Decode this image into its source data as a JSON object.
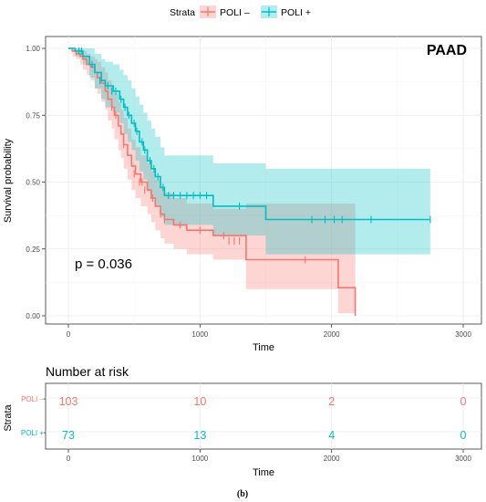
{
  "chart_data": [
    {
      "type": "line",
      "subtype": "kaplan-meier",
      "label": "PAAD",
      "annotation": "p = 0.036",
      "xlabel": "Time",
      "ylabel": "Survival probability",
      "xlim": [
        0,
        3000
      ],
      "ylim": [
        0,
        1
      ],
      "xticks": [
        0,
        1000,
        2000,
        3000
      ],
      "yticks": [
        "0.00",
        "0.25",
        "0.50",
        "0.75",
        "1.00"
      ],
      "grid": true,
      "legend": {
        "title": "Strata",
        "position": "top",
        "entries": [
          "POLI –",
          "POLI +"
        ]
      },
      "series": [
        {
          "name": "POLI –",
          "color": "#F8766D",
          "fill": "#F8766D",
          "steps": [
            [
              0,
              1.0
            ],
            [
              30,
              0.99
            ],
            [
              60,
              0.98
            ],
            [
              90,
              0.97
            ],
            [
              110,
              0.96
            ],
            [
              140,
              0.94
            ],
            [
              170,
              0.93
            ],
            [
              200,
              0.91
            ],
            [
              220,
              0.89
            ],
            [
              250,
              0.87
            ],
            [
              280,
              0.84
            ],
            [
              300,
              0.81
            ],
            [
              330,
              0.78
            ],
            [
              350,
              0.75
            ],
            [
              380,
              0.71
            ],
            [
              400,
              0.68
            ],
            [
              420,
              0.64
            ],
            [
              450,
              0.6
            ],
            [
              480,
              0.56
            ],
            [
              510,
              0.53
            ],
            [
              550,
              0.5
            ],
            [
              600,
              0.47
            ],
            [
              630,
              0.44
            ],
            [
              660,
              0.41
            ],
            [
              700,
              0.38
            ],
            [
              730,
              0.36
            ],
            [
              800,
              0.34
            ],
            [
              900,
              0.32
            ],
            [
              1100,
              0.3
            ],
            [
              1350,
              0.21
            ],
            [
              2050,
              0.105
            ],
            [
              2180,
              0.0
            ]
          ],
          "lower": [
            [
              0,
              1.0
            ],
            [
              30,
              0.97
            ],
            [
              60,
              0.96
            ],
            [
              90,
              0.94
            ],
            [
              110,
              0.92
            ],
            [
              140,
              0.9
            ],
            [
              170,
              0.88
            ],
            [
              200,
              0.85
            ],
            [
              220,
              0.83
            ],
            [
              250,
              0.8
            ],
            [
              280,
              0.77
            ],
            [
              300,
              0.73
            ],
            [
              330,
              0.7
            ],
            [
              350,
              0.66
            ],
            [
              380,
              0.62
            ],
            [
              400,
              0.59
            ],
            [
              420,
              0.55
            ],
            [
              450,
              0.51
            ],
            [
              480,
              0.47
            ],
            [
              510,
              0.44
            ],
            [
              550,
              0.41
            ],
            [
              600,
              0.38
            ],
            [
              630,
              0.35
            ],
            [
              660,
              0.32
            ],
            [
              700,
              0.29
            ],
            [
              730,
              0.27
            ],
            [
              800,
              0.25
            ],
            [
              900,
              0.23
            ],
            [
              1100,
              0.21
            ],
            [
              1350,
              0.1
            ],
            [
              2050,
              0.01
            ],
            [
              2180,
              0.0
            ]
          ],
          "upper": [
            [
              0,
              1.0
            ],
            [
              30,
              1.0
            ],
            [
              60,
              1.0
            ],
            [
              90,
              1.0
            ],
            [
              110,
              0.99
            ],
            [
              140,
              0.98
            ],
            [
              170,
              0.97
            ],
            [
              200,
              0.96
            ],
            [
              220,
              0.95
            ],
            [
              250,
              0.93
            ],
            [
              280,
              0.91
            ],
            [
              300,
              0.88
            ],
            [
              330,
              0.86
            ],
            [
              350,
              0.83
            ],
            [
              380,
              0.8
            ],
            [
              400,
              0.77
            ],
            [
              420,
              0.74
            ],
            [
              450,
              0.7
            ],
            [
              480,
              0.66
            ],
            [
              510,
              0.63
            ],
            [
              550,
              0.6
            ],
            [
              600,
              0.57
            ],
            [
              630,
              0.54
            ],
            [
              660,
              0.51
            ],
            [
              700,
              0.48
            ],
            [
              730,
              0.46
            ],
            [
              800,
              0.44
            ],
            [
              900,
              0.42
            ],
            [
              1100,
              0.4
            ],
            [
              1350,
              0.42
            ],
            [
              2050,
              0.42
            ],
            [
              2180,
              0.0
            ]
          ],
          "censor": [
            [
              330,
              0.78
            ],
            [
              360,
              0.75
            ],
            [
              420,
              0.64
            ],
            [
              500,
              0.53
            ],
            [
              540,
              0.5
            ],
            [
              560,
              0.5
            ],
            [
              580,
              0.47
            ],
            [
              640,
              0.44
            ],
            [
              700,
              0.38
            ],
            [
              730,
              0.36
            ],
            [
              850,
              0.34
            ],
            [
              1000,
              0.32
            ],
            [
              1180,
              0.3
            ],
            [
              1220,
              0.28
            ],
            [
              1260,
              0.28
            ],
            [
              1300,
              0.28
            ],
            [
              1800,
              0.21
            ]
          ]
        },
        {
          "name": "POLI +",
          "color": "#00BFC4",
          "fill": "#00BFC4",
          "steps": [
            [
              0,
              1.0
            ],
            [
              50,
              0.99
            ],
            [
              110,
              0.97
            ],
            [
              160,
              0.94
            ],
            [
              200,
              0.91
            ],
            [
              250,
              0.88
            ],
            [
              280,
              0.86
            ],
            [
              340,
              0.84
            ],
            [
              390,
              0.81
            ],
            [
              420,
              0.78
            ],
            [
              450,
              0.75
            ],
            [
              480,
              0.72
            ],
            [
              510,
              0.69
            ],
            [
              540,
              0.65
            ],
            [
              570,
              0.62
            ],
            [
              600,
              0.58
            ],
            [
              630,
              0.55
            ],
            [
              660,
              0.52
            ],
            [
              700,
              0.48
            ],
            [
              730,
              0.45
            ],
            [
              1100,
              0.41
            ],
            [
              1500,
              0.36
            ],
            [
              2750,
              0.36
            ]
          ],
          "lower": [
            [
              0,
              1.0
            ],
            [
              50,
              0.97
            ],
            [
              110,
              0.94
            ],
            [
              160,
              0.89
            ],
            [
              200,
              0.85
            ],
            [
              250,
              0.81
            ],
            [
              280,
              0.78
            ],
            [
              340,
              0.76
            ],
            [
              390,
              0.72
            ],
            [
              420,
              0.68
            ],
            [
              450,
              0.65
            ],
            [
              480,
              0.62
            ],
            [
              510,
              0.58
            ],
            [
              540,
              0.54
            ],
            [
              570,
              0.51
            ],
            [
              600,
              0.47
            ],
            [
              630,
              0.44
            ],
            [
              660,
              0.41
            ],
            [
              700,
              0.37
            ],
            [
              730,
              0.34
            ],
            [
              1100,
              0.3
            ],
            [
              1500,
              0.23
            ],
            [
              2750,
              0.23
            ]
          ],
          "upper": [
            [
              0,
              1.0
            ],
            [
              50,
              1.0
            ],
            [
              110,
              1.0
            ],
            [
              160,
              1.0
            ],
            [
              200,
              0.98
            ],
            [
              250,
              0.96
            ],
            [
              280,
              0.95
            ],
            [
              340,
              0.94
            ],
            [
              390,
              0.92
            ],
            [
              420,
              0.9
            ],
            [
              450,
              0.88
            ],
            [
              480,
              0.85
            ],
            [
              510,
              0.82
            ],
            [
              540,
              0.79
            ],
            [
              570,
              0.76
            ],
            [
              600,
              0.73
            ],
            [
              630,
              0.7
            ],
            [
              660,
              0.67
            ],
            [
              700,
              0.63
            ],
            [
              730,
              0.6
            ],
            [
              1100,
              0.57
            ],
            [
              1500,
              0.55
            ],
            [
              2750,
              0.55
            ]
          ],
          "censor": [
            [
              80,
              0.99
            ],
            [
              100,
              0.99
            ],
            [
              180,
              0.94
            ],
            [
              240,
              0.88
            ],
            [
              300,
              0.86
            ],
            [
              330,
              0.84
            ],
            [
              360,
              0.84
            ],
            [
              400,
              0.81
            ],
            [
              430,
              0.78
            ],
            [
              460,
              0.75
            ],
            [
              500,
              0.72
            ],
            [
              520,
              0.69
            ],
            [
              560,
              0.65
            ],
            [
              580,
              0.62
            ],
            [
              620,
              0.58
            ],
            [
              650,
              0.55
            ],
            [
              680,
              0.52
            ],
            [
              720,
              0.48
            ],
            [
              760,
              0.45
            ],
            [
              800,
              0.45
            ],
            [
              850,
              0.45
            ],
            [
              900,
              0.45
            ],
            [
              950,
              0.45
            ],
            [
              1000,
              0.45
            ],
            [
              1050,
              0.45
            ],
            [
              1300,
              0.41
            ],
            [
              1850,
              0.36
            ],
            [
              1950,
              0.36
            ],
            [
              2020,
              0.36
            ],
            [
              2080,
              0.36
            ],
            [
              2300,
              0.36
            ],
            [
              2750,
              0.36
            ]
          ]
        }
      ]
    },
    {
      "type": "table",
      "title": "Number at risk",
      "xlabel": "Time",
      "ylabel": "Strata",
      "xticks": [
        0,
        1000,
        2000,
        3000
      ],
      "rows": [
        {
          "name": "POLI –",
          "color": "#F8766D",
          "values": [
            103,
            10,
            2,
            0
          ]
        },
        {
          "name": "POLI +",
          "color": "#00BFC4",
          "values": [
            73,
            13,
            4,
            0
          ]
        }
      ]
    }
  ],
  "caption": "(b)"
}
